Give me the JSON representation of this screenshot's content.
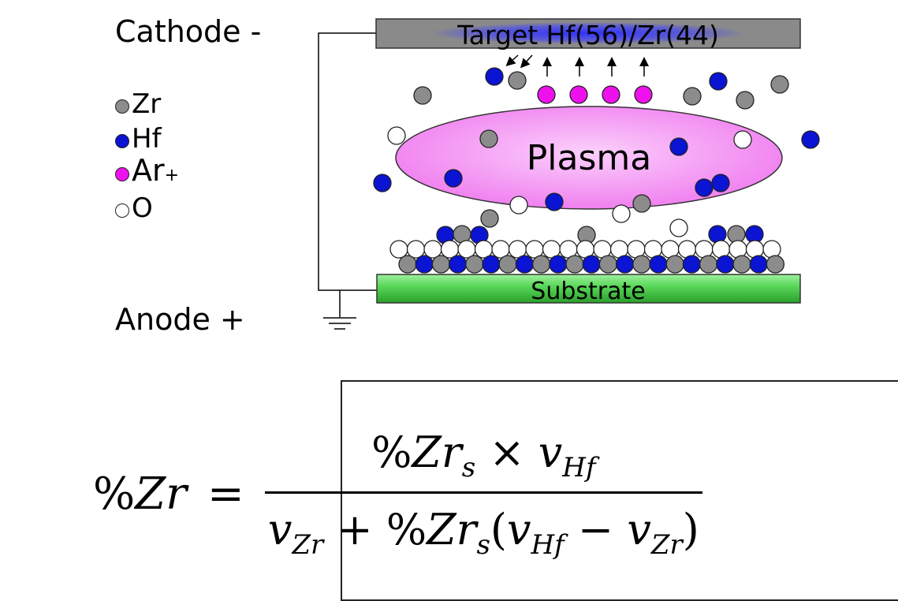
{
  "labels": {
    "cathode": "Cathode -",
    "anode": "Anode +",
    "target": "Target Hf(56)/Zr(44)",
    "plasma": "Plasma",
    "substrate": "Substrate"
  },
  "legend": [
    {
      "symbol": "Zr",
      "sup": "",
      "color": "#8c8c8c"
    },
    {
      "symbol": "Hf",
      "sup": "",
      "color": "#0a14d2"
    },
    {
      "symbol": "Ar",
      "sup": "+",
      "color": "#ee11ee"
    },
    {
      "symbol": "O",
      "sup": "",
      "color": "#ffffff"
    }
  ],
  "colors": {
    "zr": "#8c8c8c",
    "hf": "#0a14d2",
    "ar": "#ee11ee",
    "o": "#ffffff",
    "plasma_fill": "#f48cf4",
    "substrate": "#4fd04f",
    "target_base": "#8a8a8a",
    "target_glow": "#2c2cff"
  },
  "formula": {
    "lhs_pct": "%",
    "lhs_var": "Zr",
    "eq": "=",
    "num_pct": "%",
    "num_var": "Zr",
    "num_sub": "s",
    "num_times": " × ",
    "num_v": "v",
    "num_v_sub": "Hf",
    "den_v1": "v",
    "den_v1_sub": "Zr",
    "den_plus": " + ",
    "den_pct": "%",
    "den_var": "Zr",
    "den_sub": "s",
    "den_open": "(",
    "den_v2": "v",
    "den_v2_sub": "Hf",
    "den_minus": " − ",
    "den_v3": "v",
    "den_v3_sub": "Zr",
    "den_close": ")"
  }
}
